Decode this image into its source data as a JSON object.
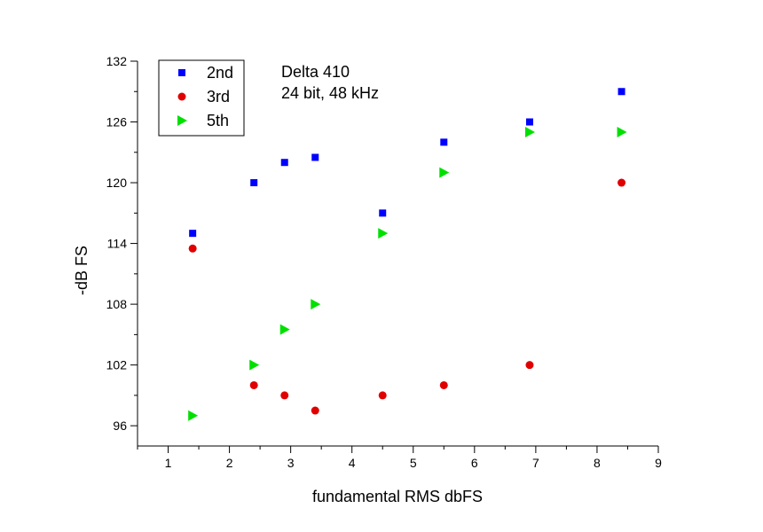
{
  "chart_data": {
    "type": "scatter",
    "title": "",
    "xlabel": "fundamental RMS dbFS",
    "ylabel": "-dB FS",
    "xlim": [
      0.5,
      9
    ],
    "ylim": [
      94,
      132
    ],
    "xticks": [
      1,
      2,
      3,
      4,
      5,
      6,
      7,
      8,
      9
    ],
    "yticks": [
      96,
      102,
      108,
      114,
      120,
      126,
      132
    ],
    "grid": false,
    "legend_position": "top-left",
    "annotation": [
      "Delta 410",
      "24 bit, 48 kHz"
    ],
    "series": [
      {
        "name": "2nd",
        "color": "#0000ff",
        "marker": "square",
        "x": [
          1.4,
          2.4,
          2.9,
          3.4,
          4.5,
          5.5,
          6.9,
          8.4
        ],
        "y": [
          115,
          120,
          122,
          122.5,
          117,
          124,
          126,
          129
        ]
      },
      {
        "name": "3rd",
        "color": "#e00000",
        "marker": "circle",
        "x": [
          1.4,
          2.4,
          2.9,
          3.4,
          4.5,
          5.5,
          6.9,
          8.4
        ],
        "y": [
          113.5,
          100,
          99,
          97.5,
          99,
          100,
          102,
          120
        ]
      },
      {
        "name": "5th",
        "color": "#00e000",
        "marker": "triangle-right",
        "x": [
          1.4,
          2.4,
          2.9,
          3.4,
          4.5,
          5.5,
          6.9,
          8.4
        ],
        "y": [
          97,
          102,
          105.5,
          108,
          115,
          121,
          125,
          125
        ]
      }
    ]
  }
}
